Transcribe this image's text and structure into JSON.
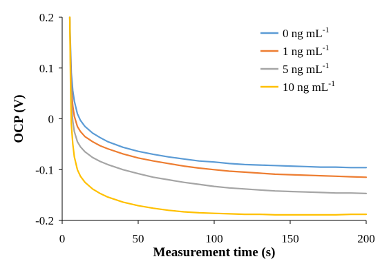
{
  "chart_data": {
    "type": "line",
    "xlabel": "Measurement time (s)",
    "ylabel": "OCP (V)",
    "xlim": [
      0,
      200
    ],
    "ylim": [
      -0.2,
      0.2
    ],
    "x_ticks": [
      0,
      50,
      100,
      150,
      200
    ],
    "y_ticks": [
      0.2,
      0.1,
      0,
      -0.1,
      -0.2
    ],
    "x_tick_labels": [
      "0",
      "50",
      "100",
      "150",
      "200"
    ],
    "y_tick_labels": [
      "0.2",
      "0.1",
      "0",
      "-0.1",
      "-0.2"
    ],
    "grid": false,
    "legend_position": "top-right",
    "series": [
      {
        "name": "0 ng mL-1",
        "legend_main": "0 ng mL",
        "legend_sup": "-1",
        "color": "#5B9BD5",
        "x": [
          5,
          5.5,
          6,
          7,
          8,
          10,
          12,
          15,
          20,
          25,
          30,
          40,
          50,
          60,
          70,
          80,
          90,
          100,
          110,
          120,
          130,
          140,
          150,
          160,
          170,
          180,
          190,
          200
        ],
        "y": [
          0.2,
          0.14,
          0.09,
          0.055,
          0.035,
          0.01,
          -0.003,
          -0.015,
          -0.028,
          -0.037,
          -0.045,
          -0.056,
          -0.064,
          -0.07,
          -0.075,
          -0.079,
          -0.083,
          -0.085,
          -0.088,
          -0.09,
          -0.091,
          -0.092,
          -0.093,
          -0.094,
          -0.095,
          -0.095,
          -0.096,
          -0.096
        ]
      },
      {
        "name": "1 ng mL-1",
        "legend_main": "1 ng mL",
        "legend_sup": "-1",
        "color": "#ED7D31",
        "x": [
          5,
          5.5,
          6,
          7,
          8,
          10,
          12,
          15,
          20,
          25,
          30,
          40,
          50,
          60,
          70,
          80,
          90,
          100,
          110,
          120,
          130,
          140,
          150,
          160,
          170,
          180,
          190,
          200
        ],
        "y": [
          0.2,
          0.12,
          0.06,
          0.025,
          0.005,
          -0.015,
          -0.025,
          -0.035,
          -0.045,
          -0.053,
          -0.059,
          -0.069,
          -0.077,
          -0.083,
          -0.088,
          -0.093,
          -0.097,
          -0.1,
          -0.103,
          -0.105,
          -0.107,
          -0.109,
          -0.11,
          -0.111,
          -0.112,
          -0.113,
          -0.114,
          -0.115
        ]
      },
      {
        "name": "5 ng mL-1",
        "legend_main": "5 ng mL",
        "legend_sup": "-1",
        "color": "#A5A5A5",
        "x": [
          5,
          5.5,
          6,
          7,
          8,
          10,
          12,
          15,
          20,
          25,
          30,
          40,
          50,
          60,
          70,
          80,
          90,
          100,
          110,
          120,
          130,
          140,
          150,
          160,
          170,
          180,
          190,
          200
        ],
        "y": [
          0.2,
          0.1,
          0.03,
          -0.005,
          -0.025,
          -0.045,
          -0.055,
          -0.065,
          -0.076,
          -0.084,
          -0.09,
          -0.1,
          -0.108,
          -0.115,
          -0.12,
          -0.125,
          -0.129,
          -0.133,
          -0.136,
          -0.138,
          -0.14,
          -0.142,
          -0.143,
          -0.144,
          -0.145,
          -0.146,
          -0.146,
          -0.147
        ]
      },
      {
        "name": "10 ng mL-1",
        "legend_main": "10 ng mL",
        "legend_sup": "-1",
        "color": "#FFC000",
        "x": [
          5,
          5.5,
          6,
          7,
          8,
          10,
          12,
          15,
          20,
          25,
          30,
          40,
          50,
          60,
          70,
          80,
          90,
          100,
          110,
          120,
          130,
          140,
          150,
          160,
          170,
          180,
          190,
          200
        ],
        "y": [
          0.2,
          0.07,
          -0.01,
          -0.05,
          -0.075,
          -0.1,
          -0.113,
          -0.125,
          -0.138,
          -0.147,
          -0.154,
          -0.164,
          -0.171,
          -0.176,
          -0.18,
          -0.183,
          -0.185,
          -0.186,
          -0.187,
          -0.188,
          -0.188,
          -0.189,
          -0.189,
          -0.189,
          -0.189,
          -0.189,
          -0.188,
          -0.188
        ]
      }
    ]
  }
}
